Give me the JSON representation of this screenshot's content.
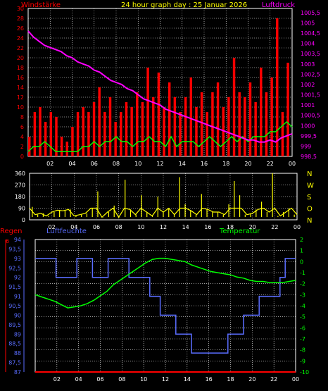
{
  "colors": {
    "wind": "#ff0000",
    "pressure": "#ff00ff",
    "wind_dir": "#ffff00",
    "humidity": "#5a6dff",
    "temperature": "#00ff00",
    "rain": "#ff0000",
    "grid": "#ffffff",
    "axis_text": "#ffffff",
    "dir_text": "#ffff00",
    "frame": "#ffffff"
  },
  "chart_data": [
    {
      "type": "line",
      "title": "24 hour graph day : 25 Januar 2026",
      "series": [
        {
          "name": "Windstärke",
          "axis": "left",
          "values": [
            4,
            9,
            10,
            7,
            9,
            8,
            4,
            3,
            6,
            9,
            10,
            9,
            11,
            14,
            9,
            12,
            7,
            9,
            11,
            10,
            13,
            11,
            18,
            12,
            17,
            10,
            15,
            12,
            9,
            12,
            16,
            10,
            13,
            9,
            13,
            15,
            10,
            12,
            20,
            13,
            12,
            15,
            11,
            18,
            13,
            16,
            28,
            9,
            19
          ]
        },
        {
          "name": "Windstärke (avg)",
          "axis": "left",
          "values": [
            1,
            2,
            2,
            3,
            2,
            1,
            1,
            1,
            1,
            1,
            2,
            2,
            3,
            2,
            3,
            3,
            4,
            3,
            3,
            2,
            3,
            3,
            4,
            3,
            3,
            2,
            4,
            2,
            3,
            3,
            3,
            2,
            3,
            4,
            3,
            2,
            3,
            4,
            3,
            4,
            3,
            4,
            4,
            4,
            5,
            5,
            6,
            7,
            6
          ]
        },
        {
          "name": "Luftdruck",
          "axis": "right",
          "values": [
            1004.6,
            1004.3,
            1004.1,
            1003.9,
            1003.8,
            1003.7,
            1003.6,
            1003.4,
            1003.3,
            1003.1,
            1003.0,
            1002.9,
            1002.7,
            1002.6,
            1002.4,
            1002.2,
            1002.1,
            1002.0,
            1001.8,
            1001.7,
            1001.5,
            1001.3,
            1001.2,
            1001.1,
            1001.0,
            1000.8,
            1000.7,
            1000.6,
            1000.5,
            1000.4,
            1000.3,
            1000.2,
            1000.1,
            1000.0,
            999.9,
            999.8,
            999.7,
            999.6,
            999.5,
            999.4,
            999.3,
            999.3,
            999.2,
            999.2,
            999.3,
            999.2,
            999.4,
            999.5,
            999.6
          ]
        }
      ],
      "y_left": {
        "label": "Windstärke",
        "ticks": [
          "0",
          "2",
          "4",
          "6",
          "8",
          "10",
          "12",
          "14",
          "16",
          "18",
          "20",
          "22",
          "24",
          "26",
          "28",
          "30"
        ],
        "range": [
          0,
          30
        ]
      },
      "y_right": {
        "label": "Luftdruck",
        "ticks": [
          "998,5",
          "999",
          "999,5",
          "1000",
          "1000,5",
          "1001",
          "1001,5",
          "1002",
          "1002,5",
          "1003",
          "1003,5",
          "1004",
          "1004,5",
          "1005",
          "1005,5"
        ],
        "range": [
          998.5,
          1005.7
        ]
      },
      "x_ticks": [
        "02",
        "04",
        "06",
        "08",
        "10",
        "12",
        "14",
        "16",
        "18",
        "20",
        "22",
        "00"
      ]
    },
    {
      "type": "line",
      "series": [
        {
          "name": "Windrichtung",
          "values": [
            100,
            40,
            50,
            30,
            60,
            75,
            70,
            80,
            30,
            40,
            50,
            90,
            220,
            20,
            60,
            110,
            20,
            310,
            80,
            40,
            190,
            60,
            30,
            180,
            60,
            90,
            40,
            330,
            120,
            70,
            40,
            200,
            80,
            60,
            60,
            40,
            120,
            300,
            190,
            40,
            50,
            80,
            140,
            60,
            360,
            30,
            60,
            90,
            40
          ]
        }
      ],
      "y_ticks": [
        "0",
        "90",
        "180",
        "270",
        "360"
      ],
      "range": [
        0,
        360
      ],
      "direction_labels": [
        "N",
        "W",
        "S",
        "O",
        "N"
      ],
      "x_ticks": [
        "02",
        "04",
        "06",
        "08",
        "10",
        "12",
        "14",
        "16",
        "18",
        "20",
        "22",
        "00"
      ]
    },
    {
      "type": "line",
      "series": [
        {
          "name": "Regen",
          "axis": "far-left",
          "values": [
            0,
            0,
            0,
            0,
            0,
            0,
            0,
            0,
            0,
            0,
            0,
            0,
            0,
            0,
            0,
            0,
            0,
            0,
            0,
            0,
            0,
            0,
            0,
            0,
            0,
            0,
            0,
            0,
            0,
            0,
            0,
            0,
            0,
            0,
            0,
            0,
            0,
            0,
            0,
            0,
            0,
            0,
            0,
            0,
            0,
            0,
            0,
            0,
            0
          ]
        },
        {
          "name": "Luftfeuchte",
          "axis": "left",
          "values": [
            93,
            93,
            93,
            93,
            92,
            92,
            92,
            92,
            93,
            93,
            93,
            92,
            92,
            92,
            93,
            93,
            93,
            93,
            92,
            92,
            92,
            92,
            91,
            91,
            90,
            90,
            90,
            89,
            89,
            89,
            88,
            88,
            88,
            88,
            88,
            88,
            88,
            89,
            89,
            89,
            90,
            90,
            90,
            91,
            91,
            91,
            91,
            92,
            93,
            93
          ]
        },
        {
          "name": "Temperatur",
          "axis": "right",
          "values": [
            -3.0,
            -3.2,
            -3.4,
            -3.6,
            -3.9,
            -4.2,
            -4.1,
            -4.0,
            -3.8,
            -3.5,
            -3.1,
            -2.7,
            -2.1,
            -1.7,
            -1.3,
            -0.9,
            -0.5,
            -0.1,
            0.2,
            0.3,
            0.3,
            0.2,
            0.1,
            0.0,
            -0.3,
            -0.5,
            -0.7,
            -0.9,
            -1.0,
            -1.1,
            -1.2,
            -1.4,
            -1.5,
            -1.7,
            -1.8,
            -1.8,
            -1.9,
            -1.9,
            -1.9,
            -1.8,
            -1.7
          ]
        }
      ],
      "rain_ticks": [
        "6"
      ],
      "labels": {
        "rain": "Regen",
        "humidity": "Luftfeuchte",
        "temperature": "Temperatur"
      },
      "y_left": {
        "ticks": [
          "87",
          "87,5",
          "88",
          "88,5",
          "89",
          "89,5",
          "90",
          "90,5",
          "91",
          "91,5",
          "92",
          "92,5",
          "93",
          "93,5",
          "94"
        ],
        "range": [
          87,
          94
        ]
      },
      "y_right": {
        "ticks": [
          "-10",
          "-9",
          "-8",
          "-7",
          "-6",
          "-5",
          "-4",
          "-3",
          "-2",
          "-1",
          "0",
          "1",
          "2"
        ],
        "range": [
          -10,
          2
        ]
      },
      "x_ticks": [
        "02",
        "04",
        "06",
        "08",
        "10",
        "12",
        "14",
        "16",
        "18",
        "20",
        "22",
        "00"
      ]
    }
  ]
}
